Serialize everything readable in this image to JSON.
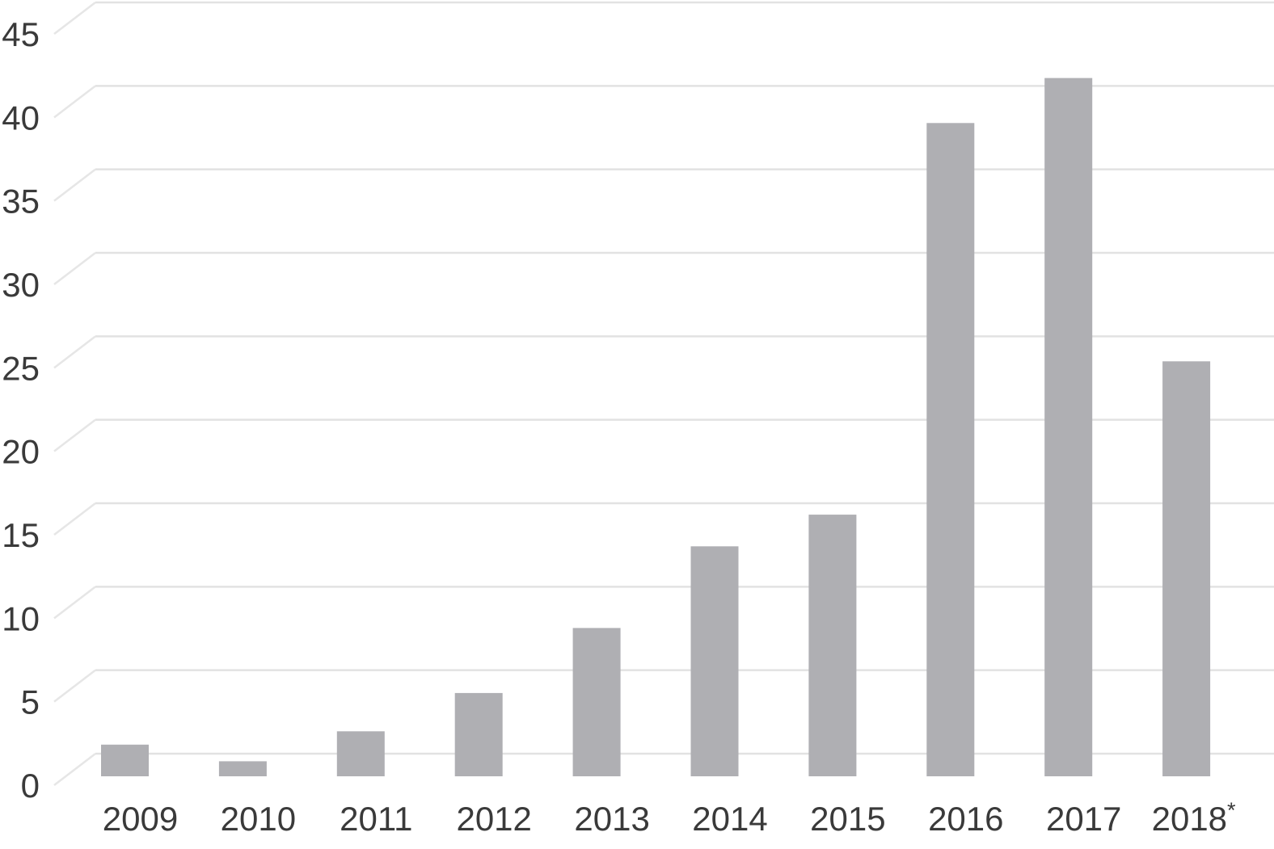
{
  "chart_data": {
    "type": "bar",
    "title": "",
    "xlabel": "",
    "ylabel": "",
    "categories": [
      "2009",
      "2010",
      "2011",
      "2012",
      "2013",
      "2014",
      "2015",
      "2016",
      "2017",
      "2018"
    ],
    "values": [
      1.9,
      0.9,
      2.7,
      5.0,
      8.9,
      13.8,
      15.7,
      39.2,
      41.9,
      24.9
    ],
    "footnote_category": "2018",
    "footnote_marker": "*",
    "ylim": [
      0,
      45
    ],
    "yticks": [
      0,
      5,
      10,
      15,
      20,
      25,
      30,
      35,
      40,
      45
    ],
    "ytick_labels": [
      "0",
      "5",
      "10",
      "15",
      "20",
      "25",
      "30",
      "35",
      "40",
      "45"
    ],
    "grid": "horizontal",
    "legend_position": "none",
    "bar_color": "#afafb3",
    "gridline_color": "#e2e2e2",
    "tick_diagonal_color": "#e6e6e6",
    "text_color": "#3a3a3a",
    "background_color": "#ffffff"
  }
}
